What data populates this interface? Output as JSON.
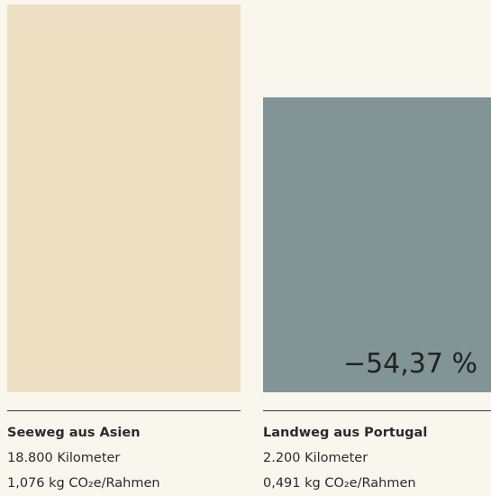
{
  "columns": [
    {
      "title": "Seeweg aus Asien",
      "distance": "18.800 Kilometer",
      "emission": "1,076 kg CO₂e/Rahmen"
    },
    {
      "title": "Landweg aus Portugal",
      "distance": "2.200 Kilometer",
      "emission": "0,491 kg CO₂e/Rahmen",
      "badge": "−54,37 %"
    }
  ]
}
